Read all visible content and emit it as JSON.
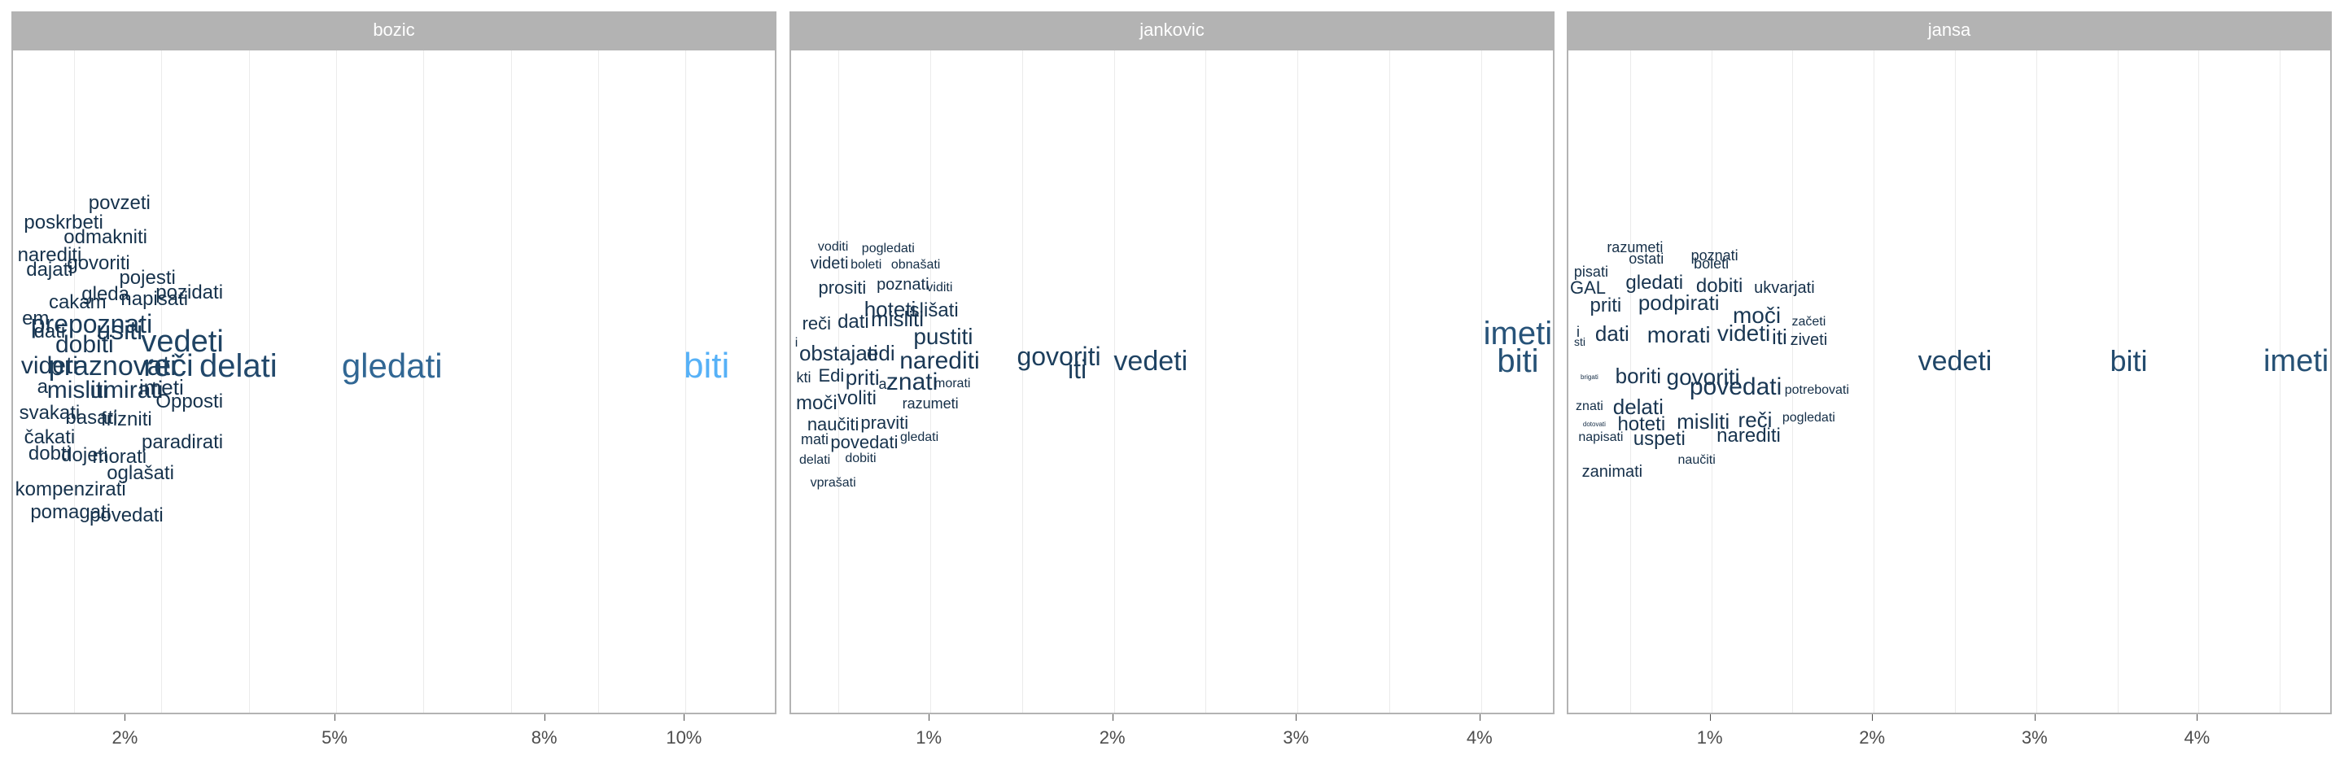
{
  "chart_data": {
    "type": "wordcloud-facets",
    "color_scale": {
      "low": "#132b43",
      "high": "#56b1f7"
    },
    "panels": [
      {
        "name": "bozic",
        "x_range": [
          0.4,
          11.3
        ],
        "ticks": [
          {
            "value": 2,
            "label": "2%"
          },
          {
            "value": 5,
            "label": "5%"
          },
          {
            "value": 8,
            "label": "8%"
          },
          {
            "value": 10,
            "label": "10%"
          }
        ],
        "gridlines": [
          1.25,
          2.5,
          3.75,
          5,
          6.25,
          7.5,
          8.75,
          10
        ],
        "words": [
          {
            "text": "povzeti",
            "x": 1.9,
            "size": 24,
            "level": 0.05
          },
          {
            "text": "poskrbeti",
            "x": 1.1,
            "size": 24,
            "level": 0.05
          },
          {
            "text": "odmakniti",
            "x": 1.7,
            "size": 24,
            "level": 0.05
          },
          {
            "text": "narediti",
            "x": 0.9,
            "size": 24,
            "level": 0.05
          },
          {
            "text": "govoriti",
            "x": 1.6,
            "size": 24,
            "level": 0.05
          },
          {
            "text": "dajati",
            "x": 0.9,
            "size": 24,
            "level": 0.05
          },
          {
            "text": "pojesti",
            "x": 2.3,
            "size": 24,
            "level": 0.05
          },
          {
            "text": "pozidati",
            "x": 2.9,
            "size": 24,
            "level": 0.05
          },
          {
            "text": "gleda",
            "x": 1.7,
            "size": 24,
            "level": 0.05
          },
          {
            "text": "cakam",
            "x": 1.3,
            "size": 24,
            "level": 0.05
          },
          {
            "text": "napisati",
            "x": 2.4,
            "size": 24,
            "level": 0.05
          },
          {
            "text": "em",
            "x": 0.7,
            "size": 24,
            "level": 0.05
          },
          {
            "text": "prepoznati",
            "x": 1.5,
            "size": 32,
            "level": 0.12
          },
          {
            "text": "dati",
            "x": 0.9,
            "size": 24,
            "level": 0.05
          },
          {
            "text": "usiti",
            "x": 1.9,
            "size": 32,
            "level": 0.12
          },
          {
            "text": "vedeti",
            "x": 2.8,
            "size": 38,
            "level": 0.18
          },
          {
            "text": "dobiti",
            "x": 1.4,
            "size": 30,
            "level": 0.1
          },
          {
            "text": "videti",
            "x": 0.9,
            "size": 30,
            "level": 0.1
          },
          {
            "text": "praznovati",
            "x": 1.8,
            "size": 34,
            "level": 0.14
          },
          {
            "text": "reči",
            "x": 2.6,
            "size": 38,
            "level": 0.18
          },
          {
            "text": "delati",
            "x": 3.6,
            "size": 40,
            "level": 0.22
          },
          {
            "text": "gledati",
            "x": 5.8,
            "size": 42,
            "level": 0.45
          },
          {
            "text": "biti",
            "x": 10.3,
            "size": 44,
            "level": 1.0
          },
          {
            "text": "a",
            "x": 0.8,
            "size": 24,
            "level": 0.05
          },
          {
            "text": "misliti",
            "x": 1.3,
            "size": 30,
            "level": 0.1
          },
          {
            "text": "umirati",
            "x": 2.0,
            "size": 30,
            "level": 0.1
          },
          {
            "text": "imeti",
            "x": 2.5,
            "size": 26,
            "level": 0.07
          },
          {
            "text": "Opposti",
            "x": 2.9,
            "size": 24,
            "level": 0.05
          },
          {
            "text": "svakati",
            "x": 0.9,
            "size": 24,
            "level": 0.05
          },
          {
            "text": "basati",
            "x": 1.5,
            "size": 24,
            "level": 0.05
          },
          {
            "text": "frizniti",
            "x": 2.0,
            "size": 24,
            "level": 0.05
          },
          {
            "text": "čakati",
            "x": 0.9,
            "size": 24,
            "level": 0.05
          },
          {
            "text": "paradirati",
            "x": 2.8,
            "size": 24,
            "level": 0.05
          },
          {
            "text": "dobti",
            "x": 0.9,
            "size": 24,
            "level": 0.05
          },
          {
            "text": "dojeti",
            "x": 1.4,
            "size": 24,
            "level": 0.05
          },
          {
            "text": "morati",
            "x": 1.9,
            "size": 24,
            "level": 0.05
          },
          {
            "text": "oglašati",
            "x": 2.2,
            "size": 24,
            "level": 0.05
          },
          {
            "text": "kompenzirati",
            "x": 1.2,
            "size": 24,
            "level": 0.05
          },
          {
            "text": "pomagati",
            "x": 1.2,
            "size": 24,
            "level": 0.05
          },
          {
            "text": "povedati",
            "x": 2.0,
            "size": 24,
            "level": 0.05
          }
        ]
      },
      {
        "name": "jankovic",
        "x_range": [
          0.25,
          4.4
        ],
        "ticks": [
          {
            "value": 1,
            "label": "1%"
          },
          {
            "value": 2,
            "label": "2%"
          },
          {
            "value": 3,
            "label": "3%"
          },
          {
            "value": 4,
            "label": "4%"
          }
        ],
        "gridlines": [
          0.5,
          1,
          1.5,
          2,
          2.5,
          3,
          3.5,
          4
        ],
        "words": [
          {
            "text": "voditi",
            "x": 0.47,
            "size": 16,
            "level": 0.02
          },
          {
            "text": "pogledati",
            "x": 0.77,
            "size": 16,
            "level": 0.02
          },
          {
            "text": "videti",
            "x": 0.45,
            "size": 20,
            "level": 0.04
          },
          {
            "text": "boleti",
            "x": 0.65,
            "size": 16,
            "level": 0.02
          },
          {
            "text": "obnašati",
            "x": 0.92,
            "size": 16,
            "level": 0.02
          },
          {
            "text": "prositi",
            "x": 0.52,
            "size": 22,
            "level": 0.05
          },
          {
            "text": "poznati",
            "x": 0.85,
            "size": 20,
            "level": 0.04
          },
          {
            "text": "viditi",
            "x": 1.05,
            "size": 16,
            "level": 0.02
          },
          {
            "text": "hoteti",
            "x": 0.78,
            "size": 26,
            "level": 0.07
          },
          {
            "text": "slišati",
            "x": 1.02,
            "size": 24,
            "level": 0.06
          },
          {
            "text": "reči",
            "x": 0.38,
            "size": 22,
            "level": 0.05
          },
          {
            "text": "dati",
            "x": 0.58,
            "size": 24,
            "level": 0.06
          },
          {
            "text": "misliti",
            "x": 0.82,
            "size": 26,
            "level": 0.07
          },
          {
            "text": "pustiti",
            "x": 1.07,
            "size": 28,
            "level": 0.09
          },
          {
            "text": "i",
            "x": 0.27,
            "size": 16,
            "level": 0.02
          },
          {
            "text": "obstajati",
            "x": 0.5,
            "size": 26,
            "level": 0.07
          },
          {
            "text": "edi",
            "x": 0.73,
            "size": 26,
            "level": 0.07
          },
          {
            "text": "narediti",
            "x": 1.05,
            "size": 30,
            "level": 0.1
          },
          {
            "text": "govoriti",
            "x": 1.7,
            "size": 32,
            "level": 0.14
          },
          {
            "text": "kti",
            "x": 0.31,
            "size": 18,
            "level": 0.03
          },
          {
            "text": "Edi",
            "x": 0.46,
            "size": 22,
            "level": 0.05
          },
          {
            "text": "priti",
            "x": 0.63,
            "size": 26,
            "level": 0.07
          },
          {
            "text": "a",
            "x": 0.74,
            "size": 18,
            "level": 0.03
          },
          {
            "text": "znati",
            "x": 0.9,
            "size": 30,
            "level": 0.1
          },
          {
            "text": "morati",
            "x": 1.12,
            "size": 16,
            "level": 0.02
          },
          {
            "text": "iti",
            "x": 1.8,
            "size": 32,
            "level": 0.14
          },
          {
            "text": "vedeti",
            "x": 2.2,
            "size": 34,
            "level": 0.18
          },
          {
            "text": "imeti",
            "x": 4.2,
            "size": 40,
            "level": 0.3
          },
          {
            "text": "biti",
            "x": 4.2,
            "size": 40,
            "level": 0.28
          },
          {
            "text": "moči",
            "x": 0.38,
            "size": 24,
            "level": 0.06
          },
          {
            "text": "voliti",
            "x": 0.6,
            "size": 24,
            "level": 0.06
          },
          {
            "text": "razumeti",
            "x": 1.0,
            "size": 18,
            "level": 0.03
          },
          {
            "text": "naučiti",
            "x": 0.47,
            "size": 22,
            "level": 0.05
          },
          {
            "text": "praviti",
            "x": 0.75,
            "size": 22,
            "level": 0.05
          },
          {
            "text": "mati",
            "x": 0.37,
            "size": 18,
            "level": 0.03
          },
          {
            "text": "povedati",
            "x": 0.64,
            "size": 22,
            "level": 0.05
          },
          {
            "text": "gledati",
            "x": 0.94,
            "size": 16,
            "level": 0.02
          },
          {
            "text": "delati",
            "x": 0.37,
            "size": 16,
            "level": 0.02
          },
          {
            "text": "dobiti",
            "x": 0.62,
            "size": 16,
            "level": 0.02
          },
          {
            "text": "vprašati",
            "x": 0.47,
            "size": 16,
            "level": 0.02
          }
        ]
      },
      {
        "name": "jansa",
        "x_range": [
          0.13,
          4.82
        ],
        "ticks": [
          {
            "value": 1,
            "label": "1%"
          },
          {
            "value": 2,
            "label": "2%"
          },
          {
            "value": 3,
            "label": "3%"
          },
          {
            "value": 4,
            "label": "4%"
          }
        ],
        "gridlines": [
          0.5,
          1,
          1.5,
          2,
          2.5,
          3,
          3.5,
          4,
          4.5
        ],
        "words": [
          {
            "text": "razumeti",
            "x": 0.53,
            "size": 18,
            "level": 0.03
          },
          {
            "text": "poznati",
            "x": 1.02,
            "size": 18,
            "level": 0.03
          },
          {
            "text": "ostati",
            "x": 0.6,
            "size": 18,
            "level": 0.03
          },
          {
            "text": "boleti",
            "x": 1.0,
            "size": 18,
            "level": 0.03
          },
          {
            "text": "pisati",
            "x": 0.26,
            "size": 18,
            "level": 0.03
          },
          {
            "text": "gledati",
            "x": 0.65,
            "size": 24,
            "level": 0.06
          },
          {
            "text": "dobiti",
            "x": 1.05,
            "size": 24,
            "level": 0.06
          },
          {
            "text": "GAL",
            "x": 0.23,
            "size": 22,
            "level": 0.05
          },
          {
            "text": "ukvarjati",
            "x": 1.45,
            "size": 20,
            "level": 0.04
          },
          {
            "text": "priti",
            "x": 0.35,
            "size": 24,
            "level": 0.06
          },
          {
            "text": "podpirati",
            "x": 0.8,
            "size": 26,
            "level": 0.08
          },
          {
            "text": "moči",
            "x": 1.28,
            "size": 28,
            "level": 0.09
          },
          {
            "text": "začeti",
            "x": 1.6,
            "size": 16,
            "level": 0.02
          },
          {
            "text": "i",
            "x": 0.18,
            "size": 18,
            "level": 0.03
          },
          {
            "text": "dati",
            "x": 0.39,
            "size": 26,
            "level": 0.07
          },
          {
            "text": "morati",
            "x": 0.8,
            "size": 28,
            "level": 0.09
          },
          {
            "text": "videti",
            "x": 1.2,
            "size": 28,
            "level": 0.09
          },
          {
            "text": "iti",
            "x": 1.42,
            "size": 26,
            "level": 0.07
          },
          {
            "text": "ziveti",
            "x": 1.6,
            "size": 20,
            "level": 0.04
          },
          {
            "text": "vedeti",
            "x": 2.5,
            "size": 34,
            "level": 0.2
          },
          {
            "text": "biti",
            "x": 3.57,
            "size": 36,
            "level": 0.24
          },
          {
            "text": "imeti",
            "x": 4.6,
            "size": 38,
            "level": 0.28
          },
          {
            "text": "sti",
            "x": 0.19,
            "size": 14,
            "level": 0.02
          },
          {
            "text": "boriti",
            "x": 0.55,
            "size": 26,
            "level": 0.07
          },
          {
            "text": "govoriti",
            "x": 0.95,
            "size": 28,
            "level": 0.09
          },
          {
            "text": "brigati",
            "x": 0.25,
            "size": 8,
            "level": 0.01
          },
          {
            "text": "povedati",
            "x": 1.15,
            "size": 30,
            "level": 0.1
          },
          {
            "text": "potrebovati",
            "x": 1.65,
            "size": 16,
            "level": 0.02
          },
          {
            "text": "znati",
            "x": 0.25,
            "size": 16,
            "level": 0.02
          },
          {
            "text": "delati",
            "x": 0.55,
            "size": 26,
            "level": 0.07
          },
          {
            "text": "dotovati",
            "x": 0.28,
            "size": 8,
            "level": 0.01
          },
          {
            "text": "hoteti",
            "x": 0.57,
            "size": 24,
            "level": 0.06
          },
          {
            "text": "misliti",
            "x": 0.95,
            "size": 26,
            "level": 0.07
          },
          {
            "text": "reči",
            "x": 1.27,
            "size": 26,
            "level": 0.07
          },
          {
            "text": "pogledati",
            "x": 1.6,
            "size": 16,
            "level": 0.02
          },
          {
            "text": "napisati",
            "x": 0.32,
            "size": 16,
            "level": 0.02
          },
          {
            "text": "uspeti",
            "x": 0.68,
            "size": 24,
            "level": 0.06
          },
          {
            "text": "narediti",
            "x": 1.23,
            "size": 24,
            "level": 0.06
          },
          {
            "text": "naučiti",
            "x": 0.91,
            "size": 16,
            "level": 0.02
          },
          {
            "text": "zanimati",
            "x": 0.39,
            "size": 20,
            "level": 0.04
          }
        ]
      }
    ]
  }
}
